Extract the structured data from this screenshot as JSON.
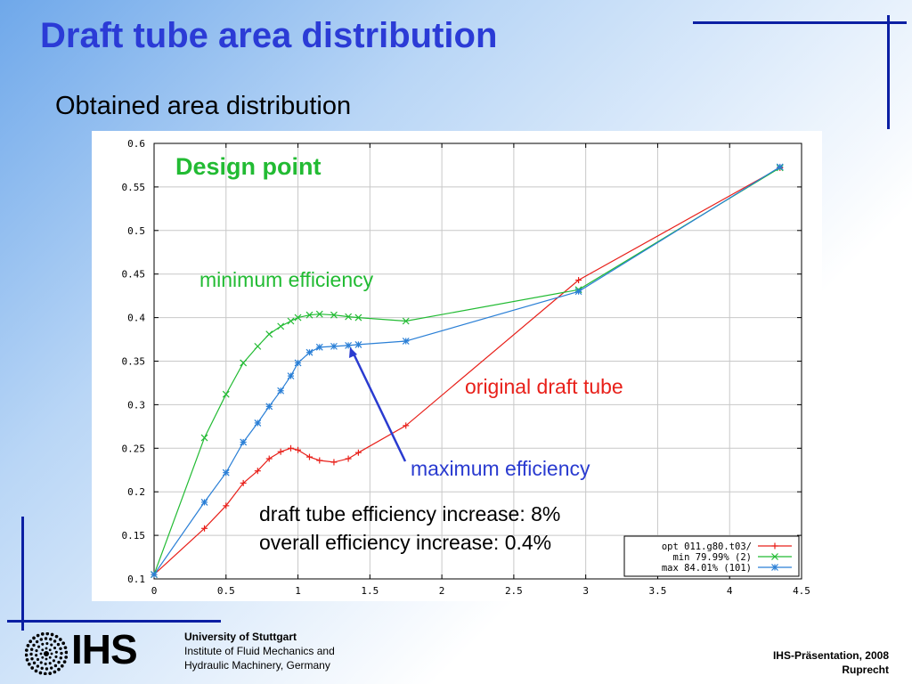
{
  "slide": {
    "title": "Draft tube area distribution",
    "subtitle": "Obtained area distribution"
  },
  "annotations": {
    "design_point": "Design point",
    "minimum_efficiency": "minimum efficiency",
    "original_draft_tube": "original draft tube",
    "maximum_efficiency": "maximum efficiency",
    "increase_line1": "draft tube efficiency increase: 8%",
    "increase_line2": "overall efficiency increase: 0.4%"
  },
  "footer": {
    "logo_text": "IHS",
    "university": "University of Stuttgart",
    "institute_line1": "Institute of Fluid Mechanics and",
    "institute_line2": "Hydraulic Machinery, Germany",
    "presentation": "IHS-Präsentation, 2008",
    "author": "Ruprecht"
  },
  "colors": {
    "title": "#2b3bd6",
    "accent_lines": "#0b1fa3",
    "design_point": "#22bb33",
    "minimum": "#22bb33",
    "original": "#e8201a",
    "maximum": "#2a3bd0"
  },
  "chart_data": {
    "type": "line",
    "xlim": [
      0,
      4.5
    ],
    "ylim": [
      0.1,
      0.6
    ],
    "x_ticks": [
      "0",
      "0.5",
      "1",
      "1.5",
      "2",
      "2.5",
      "3",
      "3.5",
      "4",
      "4.5"
    ],
    "y_ticks": [
      "0.1",
      "0.15",
      "0.2",
      "0.25",
      "0.3",
      "0.35",
      "0.4",
      "0.45",
      "0.5",
      "0.55",
      "0.6"
    ],
    "grid": true,
    "legend_position": "bottom-right",
    "series": [
      {
        "name": "opt 011.g80.t03/",
        "color": "#e8201a",
        "marker": "+",
        "points": [
          [
            0,
            0.105
          ],
          [
            0.35,
            0.158
          ],
          [
            0.5,
            0.184
          ],
          [
            0.62,
            0.21
          ],
          [
            0.72,
            0.224
          ],
          [
            0.8,
            0.238
          ],
          [
            0.88,
            0.246
          ],
          [
            0.95,
            0.25
          ],
          [
            1.0,
            0.248
          ],
          [
            1.08,
            0.24
          ],
          [
            1.15,
            0.236
          ],
          [
            1.25,
            0.234
          ],
          [
            1.35,
            0.238
          ],
          [
            1.42,
            0.245
          ],
          [
            1.75,
            0.276
          ],
          [
            2.95,
            0.443
          ],
          [
            4.35,
            0.572
          ]
        ]
      },
      {
        "name": "min 79.99% (2)",
        "color": "#22bb33",
        "marker": "x",
        "points": [
          [
            0,
            0.105
          ],
          [
            0.35,
            0.262
          ],
          [
            0.5,
            0.312
          ],
          [
            0.62,
            0.348
          ],
          [
            0.72,
            0.367
          ],
          [
            0.8,
            0.381
          ],
          [
            0.88,
            0.39
          ],
          [
            0.95,
            0.396
          ],
          [
            1.0,
            0.4
          ],
          [
            1.08,
            0.403
          ],
          [
            1.15,
            0.404
          ],
          [
            1.25,
            0.403
          ],
          [
            1.35,
            0.401
          ],
          [
            1.42,
            0.4
          ],
          [
            1.75,
            0.396
          ],
          [
            2.95,
            0.432
          ],
          [
            4.35,
            0.572
          ]
        ]
      },
      {
        "name": "max 84.01% (101)",
        "color": "#2a7fd6",
        "marker": "*",
        "points": [
          [
            0,
            0.105
          ],
          [
            0.35,
            0.188
          ],
          [
            0.5,
            0.222
          ],
          [
            0.62,
            0.257
          ],
          [
            0.72,
            0.279
          ],
          [
            0.8,
            0.298
          ],
          [
            0.88,
            0.316
          ],
          [
            0.95,
            0.333
          ],
          [
            1.0,
            0.348
          ],
          [
            1.08,
            0.36
          ],
          [
            1.15,
            0.366
          ],
          [
            1.25,
            0.367
          ],
          [
            1.35,
            0.368
          ],
          [
            1.42,
            0.369
          ],
          [
            1.75,
            0.373
          ],
          [
            2.95,
            0.43
          ],
          [
            4.35,
            0.573
          ]
        ]
      }
    ]
  }
}
